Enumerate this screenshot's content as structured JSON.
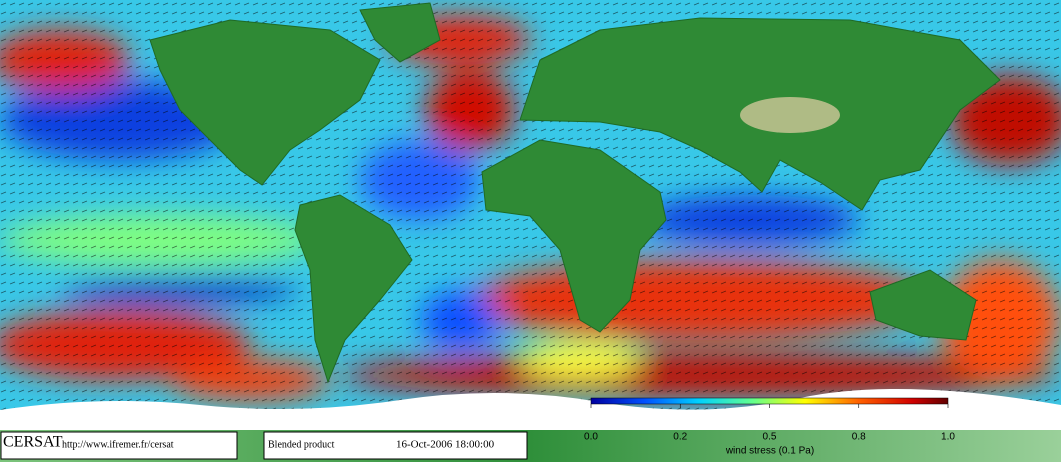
{
  "footer": {
    "logo": "CERSAT",
    "url": "http://www.ifremer.fr/cersat",
    "product": "Blended product",
    "timestamp": "16-Oct-2006 18:00:00"
  },
  "colorbar": {
    "ticks": [
      "0.0",
      "0.2",
      "0.5",
      "0.8",
      "1.0"
    ],
    "label": "wind stress (0.1 Pa)"
  }
}
